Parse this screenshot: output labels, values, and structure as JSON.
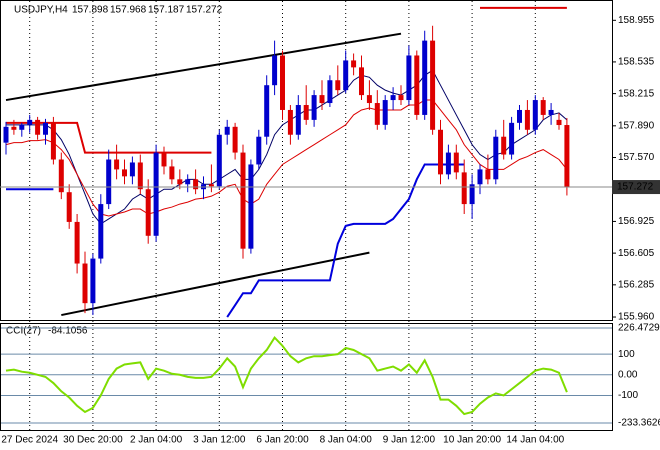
{
  "chart_data": [
    {
      "type": "candlestick",
      "title": "USDJPY,H4",
      "categories": [
        null,
        null,
        null,
        "27 Dec 2024",
        null,
        null,
        null,
        null,
        null,
        null,
        null,
        "30 Dec 20:00",
        null,
        null,
        null,
        null,
        null,
        null,
        null,
        "2 Jan 04:00",
        null,
        null,
        null,
        null,
        null,
        null,
        null,
        "3 Jan 12:00",
        null,
        null,
        null,
        null,
        null,
        null,
        null,
        "6 Jan 20:00",
        null,
        null,
        null,
        null,
        null,
        null,
        null,
        "8 Jan 04:00",
        null,
        null,
        null,
        null,
        null,
        null,
        null,
        "9 Jan 12:00",
        null,
        null,
        null,
        null,
        null,
        null,
        null,
        "10 Jan 20:00",
        null,
        null,
        null,
        null,
        null,
        null,
        null,
        "14 Jan 04:00",
        null,
        null,
        null,
        null
      ],
      "open": [
        157.72,
        157.88,
        157.85,
        157.9,
        157.95,
        157.8,
        157.92,
        157.55,
        157.22,
        156.92,
        156.5,
        156.1,
        156.55,
        157.1,
        157.55,
        157.45,
        157.38,
        157.52,
        157.25,
        156.78,
        157.62,
        157.48,
        157.35,
        157.3,
        157.35,
        157.25,
        157.3,
        157.28,
        157.8,
        157.88,
        157.62,
        156.65,
        157.5,
        157.78,
        158.3,
        158.6,
        158.05,
        157.8,
        158.1,
        157.95,
        158.2,
        158.12,
        158.35,
        158.25,
        158.55,
        158.48,
        158.2,
        158.12,
        157.9,
        158.15,
        158.2,
        158.15,
        158.6,
        158.0,
        158.75,
        157.85,
        157.4,
        157.62,
        157.42,
        157.1,
        157.3,
        157.45,
        157.35,
        157.78,
        157.6,
        157.92,
        158.05,
        157.85,
        158.15,
        158.0,
        157.95,
        157.898
      ],
      "high": [
        157.93,
        157.95,
        157.92,
        158.0,
        157.98,
        157.96,
        157.98,
        157.62,
        157.3,
        157.0,
        156.62,
        156.6,
        157.2,
        157.65,
        157.7,
        157.55,
        157.58,
        157.6,
        157.35,
        157.7,
        157.68,
        157.55,
        157.45,
        157.4,
        157.45,
        157.38,
        157.5,
        157.85,
        157.95,
        157.92,
        157.7,
        157.55,
        157.85,
        158.4,
        158.75,
        158.65,
        158.1,
        158.2,
        158.3,
        158.25,
        158.35,
        158.4,
        158.5,
        158.65,
        158.62,
        158.6,
        158.35,
        158.25,
        158.2,
        158.28,
        158.3,
        158.7,
        158.65,
        158.85,
        158.9,
        157.95,
        157.7,
        157.7,
        157.55,
        157.4,
        157.5,
        157.6,
        157.85,
        157.95,
        157.98,
        158.1,
        158.15,
        158.2,
        158.18,
        158.12,
        158.02,
        157.968
      ],
      "low": [
        157.6,
        157.8,
        157.78,
        157.82,
        157.75,
        157.7,
        157.5,
        157.15,
        156.85,
        156.4,
        156.0,
        155.98,
        156.5,
        157.05,
        157.35,
        157.3,
        157.3,
        157.2,
        156.7,
        156.72,
        157.4,
        157.3,
        157.25,
        157.22,
        157.2,
        157.15,
        157.22,
        157.25,
        157.7,
        157.55,
        156.55,
        156.6,
        157.45,
        157.7,
        158.2,
        157.95,
        157.7,
        157.75,
        157.9,
        157.88,
        158.05,
        158.08,
        158.2,
        158.22,
        158.4,
        158.15,
        158.05,
        157.85,
        157.85,
        158.05,
        158.1,
        158.1,
        157.95,
        157.95,
        157.8,
        157.3,
        157.35,
        157.35,
        157.0,
        156.95,
        157.2,
        157.3,
        157.3,
        157.55,
        157.55,
        157.85,
        157.8,
        157.8,
        157.95,
        157.9,
        157.85,
        157.187
      ],
      "close": [
        157.88,
        157.85,
        157.9,
        157.95,
        157.8,
        157.92,
        157.55,
        157.22,
        156.92,
        156.5,
        156.1,
        156.55,
        157.1,
        157.55,
        157.45,
        157.38,
        157.52,
        157.25,
        156.78,
        157.62,
        157.48,
        157.35,
        157.3,
        157.35,
        157.25,
        157.3,
        157.28,
        157.8,
        157.88,
        157.62,
        156.65,
        157.5,
        157.78,
        158.3,
        158.6,
        158.05,
        157.8,
        158.1,
        157.95,
        158.2,
        158.12,
        158.35,
        158.25,
        158.55,
        158.48,
        158.2,
        158.12,
        157.9,
        158.15,
        158.2,
        158.15,
        158.6,
        158.0,
        158.75,
        157.85,
        157.4,
        157.62,
        157.42,
        157.1,
        157.3,
        157.45,
        157.35,
        157.78,
        157.6,
        157.92,
        158.05,
        157.85,
        158.15,
        158.0,
        158.05,
        157.898,
        157.272
      ],
      "up_color": "#0000cc",
      "down_color": "#dd0000",
      "lines": [
        {
          "color": "#000066",
          "width": 1,
          "values": [
            157.9,
            157.9,
            157.9,
            157.9,
            157.9,
            157.9,
            157.85,
            157.75,
            157.6,
            157.4,
            157.2,
            157.0,
            156.9,
            156.95,
            157.0,
            157.05,
            157.15,
            157.2,
            157.15,
            157.2,
            157.25,
            157.25,
            157.3,
            157.35,
            157.35,
            157.3,
            157.3,
            157.35,
            157.4,
            157.45,
            157.35,
            157.35,
            157.45,
            157.6,
            157.8,
            157.9,
            157.95,
            158.0,
            158.05,
            158.05,
            158.1,
            158.15,
            158.2,
            158.25,
            158.35,
            158.4,
            158.38,
            158.3,
            158.25,
            158.22,
            158.2,
            158.25,
            158.3,
            158.4,
            158.45,
            158.3,
            158.15,
            158.0,
            157.85,
            157.7,
            157.6,
            157.55,
            157.6,
            157.62,
            157.7,
            157.75,
            157.8,
            157.85,
            157.95,
            158.0,
            158.02,
            157.95
          ]
        },
        {
          "color": "#dd0000",
          "width": 1,
          "values": [
            157.7,
            157.72,
            157.72,
            157.74,
            157.74,
            157.75,
            157.72,
            157.65,
            157.55,
            157.4,
            157.25,
            157.1,
            157.0,
            156.98,
            157.0,
            157.02,
            157.05,
            157.05,
            157.0,
            157.02,
            157.05,
            157.07,
            157.1,
            157.12,
            157.15,
            157.16,
            157.18,
            157.22,
            157.28,
            157.3,
            157.15,
            157.1,
            157.15,
            157.3,
            157.4,
            157.5,
            157.55,
            157.6,
            157.65,
            157.7,
            157.75,
            157.8,
            157.85,
            157.9,
            158.0,
            158.05,
            158.07,
            158.05,
            158.05,
            158.05,
            158.05,
            158.1,
            158.1,
            158.15,
            158.15,
            158.05,
            157.95,
            157.85,
            157.7,
            157.6,
            157.5,
            157.45,
            157.45,
            157.45,
            157.5,
            157.55,
            157.58,
            157.62,
            157.65,
            157.6,
            157.55,
            157.45
          ]
        },
        {
          "color": "#dd0000",
          "width": 2,
          "values": [
            157.92,
            157.92,
            157.92,
            157.92,
            157.92,
            157.92,
            157.92,
            157.92,
            157.92,
            157.92,
            157.62,
            157.62,
            157.62,
            157.62,
            157.62,
            157.62,
            157.62,
            157.62,
            157.62,
            157.62,
            157.62,
            157.62,
            157.62,
            157.62,
            157.62,
            157.62,
            157.62,
            null,
            null,
            null,
            null,
            null,
            null,
            null,
            null,
            null,
            null,
            null,
            null,
            null,
            null,
            null,
            null,
            null,
            null,
            null,
            null,
            null,
            null,
            null,
            null,
            null,
            null,
            null,
            null,
            null,
            null,
            null,
            null,
            null,
            159.08,
            159.08,
            159.08,
            159.08,
            159.08,
            159.08,
            159.08,
            159.08,
            159.08,
            159.08,
            159.08,
            159.08
          ]
        },
        {
          "color": "#0000dd",
          "width": 2,
          "values": [
            157.25,
            157.25,
            157.25,
            157.25,
            157.25,
            157.25,
            157.25,
            null,
            null,
            null,
            null,
            null,
            null,
            null,
            null,
            null,
            null,
            null,
            null,
            null,
            null,
            null,
            null,
            null,
            null,
            null,
            null,
            null,
            155.96,
            156.08,
            156.2,
            156.2,
            156.33,
            156.33,
            156.33,
            156.33,
            156.33,
            156.33,
            156.33,
            156.33,
            156.33,
            156.33,
            156.7,
            156.88,
            156.9,
            156.9,
            156.9,
            156.9,
            156.9,
            156.95,
            157.05,
            157.15,
            157.35,
            157.5,
            157.5,
            157.5,
            157.5,
            157.5,
            157.5,
            null,
            null,
            null,
            null,
            null,
            null,
            null,
            null,
            null,
            null,
            null,
            null,
            null
          ]
        }
      ],
      "trendlines": [
        {
          "color": "#000000",
          "x": [
            0,
            50
          ],
          "values": [
            158.15,
            158.82
          ]
        },
        {
          "color": "#000000",
          "x": [
            7,
            46
          ],
          "values": [
            155.98,
            156.61
          ]
        }
      ],
      "ylim": [
        155.93,
        159.16
      ],
      "yticks": [
        158.955,
        158.535,
        158.215,
        {
          "value": 157.89,
          "label": "157.890"
        },
        {
          "value": 157.57,
          "label": "157.570"
        },
        156.925,
        156.605,
        156.285,
        {
          "value": 155.96,
          "label": "155.960"
        }
      ],
      "grid": true
    },
    {
      "type": "line",
      "title": "CCI(27)",
      "series": [
        {
          "color": "#7fdd00",
          "values": [
            20,
            25,
            15,
            10,
            0,
            -10,
            -40,
            -80,
            -110,
            -150,
            -180,
            -160,
            -100,
            -20,
            30,
            50,
            55,
            60,
            -20,
            30,
            20,
            5,
            0,
            -10,
            -15,
            -15,
            -10,
            30,
            80,
            40,
            -60,
            30,
            80,
            120,
            180,
            140,
            90,
            60,
            80,
            90,
            90,
            95,
            100,
            130,
            120,
            100,
            80,
            20,
            30,
            40,
            20,
            50,
            10,
            70,
            -10,
            -120,
            -120,
            -150,
            -190,
            -180,
            -140,
            -110,
            -90,
            -100,
            -70,
            -40,
            -10,
            20,
            30,
            25,
            10,
            -84.1056
          ]
        }
      ],
      "ylim": [
        -233.3626,
        226.4729
      ],
      "yticks": [
        226.4729,
        100,
        {
          "value": 0,
          "label": "0.00"
        },
        -100,
        -233.3626
      ]
    }
  ]
}
